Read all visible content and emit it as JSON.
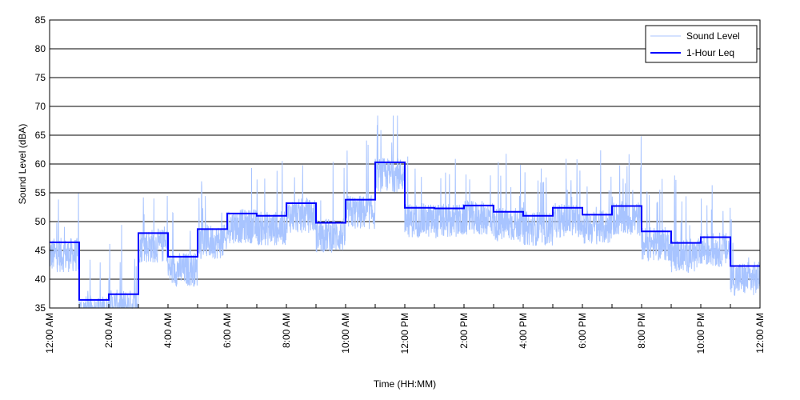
{
  "chart_data": {
    "type": "line",
    "title": "",
    "xlabel": "Time (HH:MM)",
    "ylabel": "Sound Level (dBA)",
    "ylim": [
      35,
      85
    ],
    "yticks": [
      35,
      40,
      45,
      50,
      55,
      60,
      65,
      70,
      75,
      80,
      85
    ],
    "xlim_hours": [
      0,
      24
    ],
    "xtick_labels": [
      "12:00 AM",
      "2:00 AM",
      "4:00 AM",
      "6:00 AM",
      "8:00 AM",
      "10:00 AM",
      "12:00 PM",
      "2:00 PM",
      "4:00 PM",
      "6:00 PM",
      "8:00 PM",
      "10:00 PM",
      "12:00 AM"
    ],
    "grid": "horizontal",
    "legend_position": "top-right",
    "legend": [
      "Sound Level",
      "1-Hour Leq"
    ],
    "series": [
      {
        "name": "1-Hour Leq",
        "step": true,
        "hours": [
          0,
          1,
          2,
          3,
          4,
          5,
          6,
          7,
          8,
          9,
          10,
          11,
          12,
          13,
          14,
          15,
          16,
          17,
          18,
          19,
          20,
          21,
          22,
          23
        ],
        "values": [
          46.4,
          36.4,
          37.4,
          48.0,
          43.9,
          48.7,
          51.4,
          51.0,
          53.2,
          49.8,
          53.8,
          60.3,
          52.4,
          52.3,
          52.8,
          51.7,
          51.0,
          52.4,
          51.2,
          52.7,
          48.3,
          46.3,
          47.3,
          42.3
        ],
        "color": "#0000ff"
      },
      {
        "name": "Sound Level",
        "note": "1-minute readings fluctuating around the hourly Leq, peaks up to ~68 dBA",
        "peak": 68.4,
        "color": "#a8c4ff"
      }
    ]
  }
}
